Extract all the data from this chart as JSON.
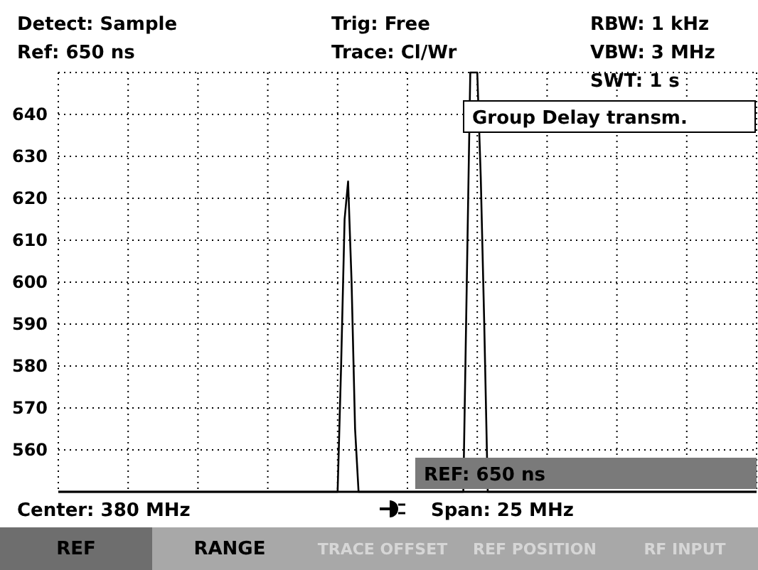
{
  "chart_data": {
    "type": "line",
    "title": "Group Delay transm.",
    "annotations": [
      "Detect: Sample",
      "Ref: 650 ns",
      "Trig: Free",
      "Trace: Cl/Wr",
      "RBW: 1 kHz",
      "VBW: 3 MHz",
      "SWT: 1 s",
      "REF: 650 ns",
      "Center: 380 MHz",
      "Span: 25 MHz",
      "REF",
      "RANGE",
      "TRACE OFFSET",
      "REF POSITION",
      "RF INPUT"
    ],
    "categories": [
      null,
      null,
      null,
      null,
      null,
      null,
      null,
      null,
      null,
      null,
      null,
      null,
      null,
      null,
      null,
      null,
      null,
      null,
      null,
      null,
      null,
      null,
      null,
      null,
      null,
      null,
      null,
      null,
      null,
      null,
      null,
      null,
      null,
      null,
      null,
      null,
      null,
      null,
      null,
      null,
      null,
      null,
      null,
      null,
      null,
      null,
      null,
      null,
      null,
      null,
      null,
      null,
      null,
      null,
      null,
      null,
      null,
      null,
      null,
      null,
      null,
      null,
      null,
      null,
      null,
      null,
      null,
      null,
      null,
      null,
      null,
      null,
      null,
      null,
      null,
      null,
      null,
      null,
      null,
      null,
      null,
      null,
      null,
      null,
      null,
      null,
      null,
      null,
      null,
      null,
      null,
      null,
      null,
      null,
      null,
      null,
      null,
      null,
      null,
      null,
      null,
      null,
      null,
      null,
      null,
      null,
      null,
      null,
      null,
      null,
      null,
      null,
      null,
      null,
      null,
      null,
      null,
      null,
      null,
      null,
      null,
      null,
      null,
      null,
      null,
      null,
      null,
      null,
      null,
      null,
      null,
      null,
      null,
      null,
      null,
      null,
      null,
      null,
      null,
      null,
      null,
      null,
      null,
      null,
      null,
      null,
      null,
      null,
      null,
      null,
      null,
      null,
      null,
      null,
      null,
      null,
      null,
      null,
      null,
      null,
      null,
      null,
      null,
      null,
      null,
      null,
      null,
      null,
      null,
      null,
      null,
      null,
      null,
      null,
      null,
      null,
      null,
      null,
      null,
      null,
      null,
      null,
      null,
      null,
      null,
      null,
      null,
      null,
      null,
      null,
      null,
      null,
      null,
      null,
      null,
      null,
      null,
      null,
      null,
      null,
      null
    ],
    "series": [
      {
        "color": "#000000",
        "values": [
          550,
          550,
          550,
          550,
          550,
          550,
          550,
          550,
          550,
          550,
          550,
          550,
          550,
          550,
          550,
          550,
          550,
          550,
          550,
          550,
          550,
          550,
          550,
          550,
          550,
          550,
          550,
          550,
          550,
          550,
          550,
          550,
          550,
          550,
          550,
          550,
          550,
          550,
          550,
          550,
          550,
          550,
          550,
          550,
          550,
          550,
          550,
          550,
          550,
          550,
          550,
          550,
          550,
          550,
          550,
          550,
          550,
          550,
          550,
          550,
          550,
          550,
          550,
          550,
          550,
          550,
          550,
          550,
          550,
          550,
          550,
          550,
          550,
          550,
          550,
          550,
          550,
          550,
          550,
          550,
          550,
          580,
          615,
          624,
          600,
          565,
          550,
          550,
          550,
          550,
          550,
          550,
          550,
          550,
          550,
          550,
          550,
          550,
          550,
          550,
          550,
          550,
          550,
          550,
          550,
          550,
          550,
          550,
          550,
          550,
          550,
          550,
          550,
          550,
          550,
          550,
          550,
          600,
          650,
          650,
          650,
          625,
          590,
          550,
          550,
          550,
          550,
          550,
          550,
          550,
          550,
          550,
          550,
          550,
          550,
          550,
          550,
          550,
          550,
          550,
          550,
          550,
          550,
          550,
          550,
          550,
          550,
          550,
          550,
          550,
          550,
          550,
          550,
          550,
          550,
          550,
          550,
          550,
          550,
          550,
          550,
          550,
          550,
          550,
          550,
          550,
          550,
          550,
          550,
          550,
          550,
          550,
          550,
          550,
          550,
          550,
          550,
          550,
          550,
          550,
          550,
          550,
          550,
          550,
          550,
          550,
          550,
          550,
          550,
          550,
          550,
          550,
          550,
          550,
          550,
          550,
          550,
          550,
          550,
          550,
          550
        ]
      }
    ],
    "ylim": [
      550,
      650
    ],
    "yticks": [
      {
        "value": 550,
        "label": null
      },
      560,
      570,
      580,
      590,
      600,
      610,
      620,
      630,
      640,
      {
        "value": 650,
        "label": null
      }
    ],
    "grid": true,
    "line_style": "solid",
    "marker": "none"
  }
}
